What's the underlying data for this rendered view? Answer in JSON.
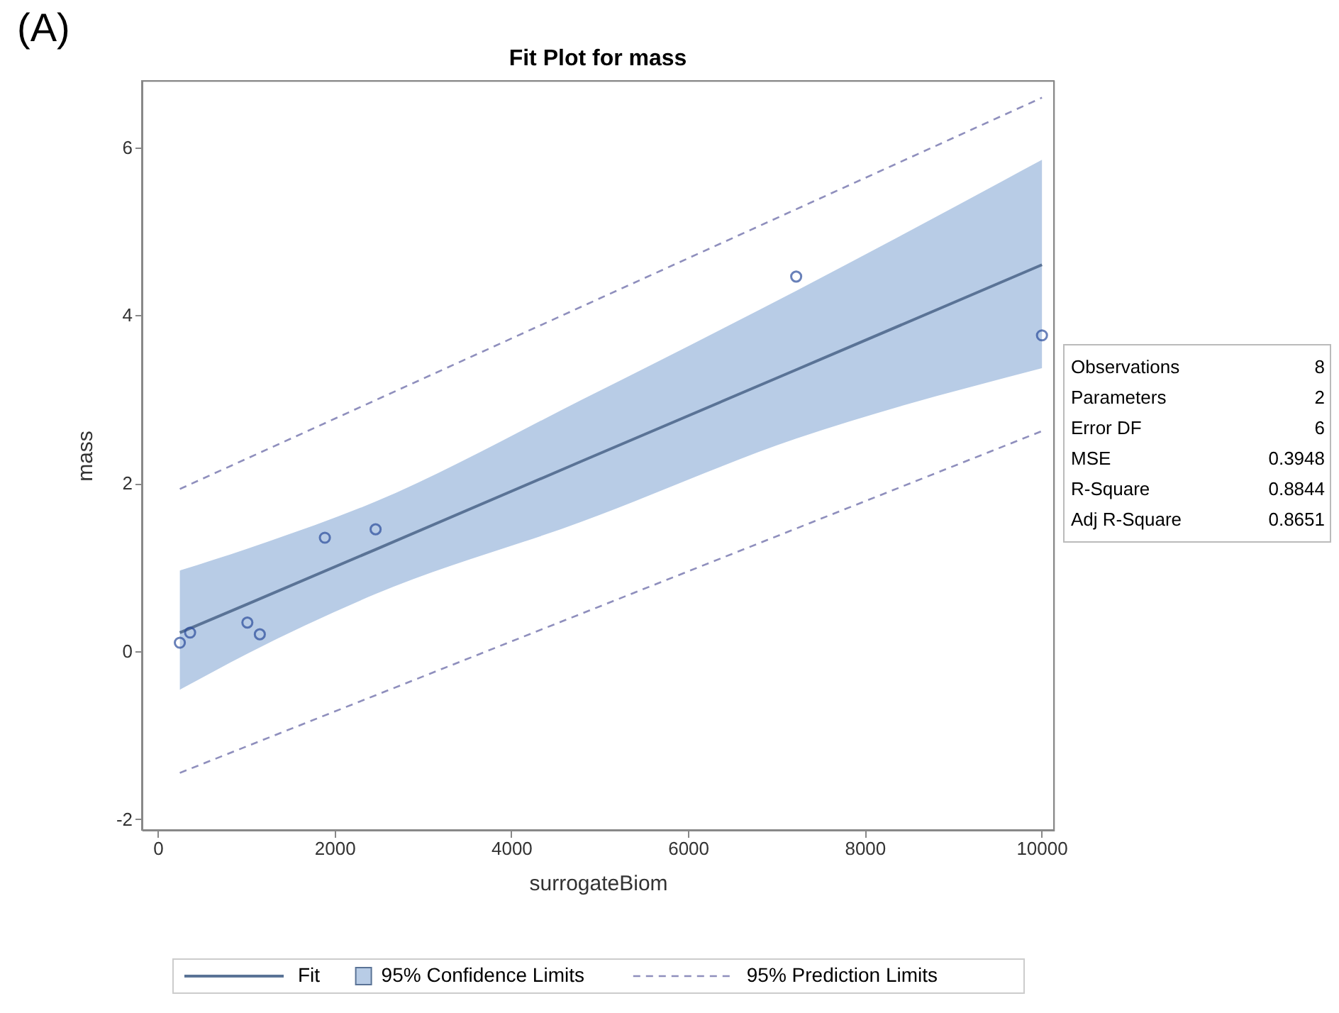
{
  "chart_data": {
    "type": "scatter",
    "title": "Fit Plot for mass",
    "xlabel": "surrogateBiom",
    "ylabel": "mass",
    "xlim": [
      -180,
      10140
    ],
    "ylim": [
      -2.13,
      6.79
    ],
    "xticks": [
      0,
      2000,
      4000,
      6000,
      8000,
      10000
    ],
    "yticks": [
      -2,
      0,
      2,
      4,
      6
    ],
    "grid": false,
    "legend": "bottom",
    "marker": "circle",
    "annotations": [
      "(A)",
      "95% Confidence Limits",
      "Observations\t8",
      "Parameters\t2",
      "Error DF\t6",
      "MSE\t0.3948",
      "R-Square\t0.8844",
      "Adj R-Square\t0.8651"
    ],
    "series": [
      {
        "name": "Fit",
        "type": "line",
        "marker": "none",
        "line_style": "solid",
        "color": "#5a7396",
        "x": [
          250,
          1014,
          2465,
          4794,
          7224,
          10005
        ],
        "values": [
          0.22,
          0.56,
          1.21,
          2.26,
          3.35,
          4.6
        ],
        "lower": [
          -0.46,
          -0.03,
          0.68,
          1.54,
          2.53,
          3.37
        ],
        "upper": [
          0.96,
          1.22,
          1.78,
          2.99,
          4.29,
          5.85
        ]
      },
      {
        "name": "95% Prediction Limits",
        "type": "line",
        "marker": "none",
        "line_style": "dashed",
        "color": "#8f8fbd",
        "x": [
          250,
          10005
        ],
        "values": [
          1.93,
          6.59
        ]
      },
      {
        "type": "line",
        "marker": "none",
        "line_style": "dashed",
        "color": "#8f8fbd",
        "x": [
          250,
          10005
        ],
        "values": [
          -1.45,
          2.62
        ]
      },
      {
        "color": "#2b4c9c",
        "x": [
          250,
          366,
          1014,
          1155,
          1891,
          2465,
          7224,
          10005
        ],
        "values": [
          0.1,
          0.22,
          0.34,
          0.2,
          1.35,
          1.45,
          4.46,
          3.76
        ]
      }
    ]
  }
}
